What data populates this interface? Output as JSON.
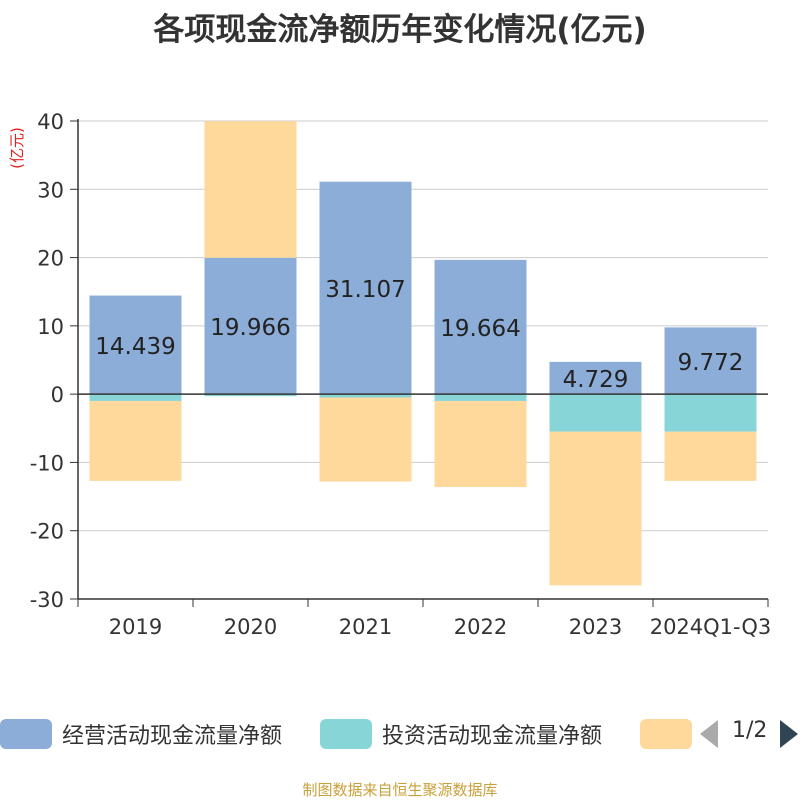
{
  "chart_data": {
    "type": "bar",
    "stacked": true,
    "title": "各项现金流净额历年变化情况(亿元)",
    "ylabel": "(亿元)",
    "categories": [
      "2019",
      "2020",
      "2021",
      "2022",
      "2023",
      "2024Q1-Q3"
    ],
    "ylim": [
      -30,
      40
    ],
    "yticks": [
      40,
      30,
      20,
      10,
      0,
      -10,
      -20,
      -30
    ],
    "grid": true,
    "legend_position": "bottom",
    "series": [
      {
        "name": "经营活动现金流量净额",
        "color": "#8dadd9",
        "values": [
          14.439,
          19.966,
          31.107,
          19.664,
          4.729,
          9.772
        ]
      },
      {
        "name": "投资活动现金流量净额",
        "color": "#88d5d8",
        "values": [
          -1.0,
          -0.3,
          -0.5,
          -1.0,
          -5.5,
          -5.5
        ]
      },
      {
        "name": "",
        "color": "#fed99b",
        "values": [
          -11.7,
          20.0,
          -12.3,
          -12.6,
          -22.5,
          -7.2
        ]
      }
    ],
    "data_labels": [
      "14.439",
      "19.966",
      "31.107",
      "19.664",
      "4.729",
      "9.772"
    ]
  },
  "legend": {
    "page": "1/2"
  },
  "source": "制图数据来自恒生聚源数据库"
}
